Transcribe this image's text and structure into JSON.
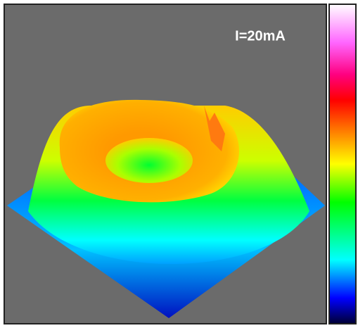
{
  "image": {
    "label": "I=20mA"
  }
}
